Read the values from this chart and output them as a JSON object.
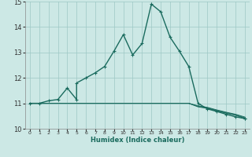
{
  "xlabel": "Humidex (Indice chaleur)",
  "xlim": [
    -0.5,
    23.5
  ],
  "ylim": [
    10,
    15
  ],
  "xticks": [
    0,
    1,
    2,
    3,
    4,
    5,
    6,
    7,
    8,
    9,
    10,
    11,
    12,
    13,
    14,
    15,
    16,
    17,
    18,
    19,
    20,
    21,
    22,
    23
  ],
  "yticks": [
    10,
    11,
    12,
    13,
    14,
    15
  ],
  "bg_color": "#cce8e5",
  "line_color": "#1a6b5e",
  "grid_color": "#9dc8c4",
  "main_x": [
    0,
    1,
    2,
    3,
    4,
    5,
    5,
    6,
    7,
    8,
    9,
    10,
    11,
    12,
    13,
    14,
    15,
    16,
    17,
    18,
    19,
    20,
    21,
    22,
    23
  ],
  "main_y": [
    11.0,
    11.0,
    11.1,
    11.15,
    11.6,
    11.15,
    11.8,
    12.0,
    12.2,
    12.45,
    13.05,
    13.7,
    12.9,
    13.35,
    14.9,
    14.6,
    13.6,
    13.05,
    12.45,
    11.0,
    10.78,
    10.68,
    10.57,
    10.47,
    10.4
  ],
  "flat1_x": [
    0,
    1,
    2,
    3,
    4,
    5,
    6,
    7,
    8,
    9,
    10,
    11,
    12,
    13,
    14,
    15,
    16,
    17,
    18,
    19,
    20,
    21,
    22,
    23
  ],
  "flat1_y": [
    11.0,
    11.0,
    11.0,
    11.0,
    11.0,
    11.0,
    11.0,
    11.0,
    11.0,
    11.0,
    11.0,
    11.0,
    11.0,
    11.0,
    11.0,
    11.0,
    11.0,
    11.0,
    10.88,
    10.82,
    10.72,
    10.63,
    10.55,
    10.43
  ],
  "flat2_x": [
    0,
    1,
    2,
    3,
    4,
    5,
    6,
    7,
    8,
    9,
    10,
    11,
    12,
    13,
    14,
    15,
    16,
    17,
    18,
    19,
    20,
    21,
    22,
    23
  ],
  "flat2_y": [
    11.0,
    11.0,
    11.0,
    11.0,
    11.0,
    11.0,
    11.0,
    11.0,
    11.0,
    11.0,
    11.0,
    11.0,
    11.0,
    11.0,
    11.0,
    11.0,
    11.0,
    11.0,
    10.9,
    10.84,
    10.74,
    10.65,
    10.57,
    10.46
  ],
  "flat3_x": [
    0,
    1,
    2,
    3,
    4,
    5,
    6,
    7,
    8,
    9,
    10,
    11,
    12,
    13,
    14,
    15,
    16,
    17,
    18,
    19,
    20,
    21,
    22,
    23
  ],
  "flat3_y": [
    11.0,
    11.0,
    11.0,
    11.0,
    11.0,
    11.0,
    11.0,
    11.0,
    11.0,
    11.0,
    11.0,
    11.0,
    11.0,
    11.0,
    11.0,
    11.0,
    11.0,
    11.0,
    10.86,
    10.8,
    10.7,
    10.61,
    10.53,
    10.4
  ]
}
